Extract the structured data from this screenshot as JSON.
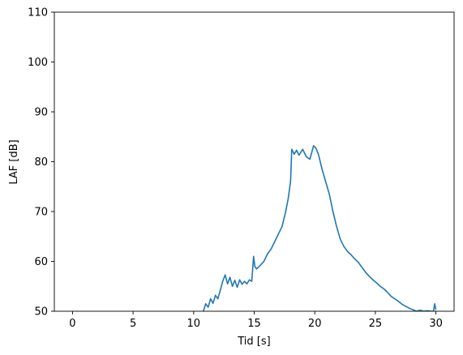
{
  "chart_data": {
    "type": "line",
    "title": "",
    "xlabel": "Tid [s]",
    "ylabel": "LAF [dB]",
    "xlim": [
      -1.5,
      31.5
    ],
    "ylim": [
      50,
      110
    ],
    "xticks": [
      0,
      5,
      10,
      15,
      20,
      25,
      30
    ],
    "yticks": [
      50,
      60,
      70,
      80,
      90,
      100,
      110
    ],
    "grid": false,
    "line_color": "#1f77b4",
    "series": [
      {
        "x": [
          10.8,
          11.0,
          11.2,
          11.4,
          11.6,
          11.8,
          12.0,
          12.2,
          12.4,
          12.6,
          12.8,
          13.0,
          13.2,
          13.4,
          13.6,
          13.8,
          14.0,
          14.2,
          14.4,
          14.6,
          14.8,
          14.95,
          15.05,
          15.2,
          15.5,
          15.8,
          16.1,
          16.4,
          16.7,
          17.0,
          17.3,
          17.6,
          17.8,
          18.0,
          18.1,
          18.3,
          18.5,
          18.7,
          19.0,
          19.3,
          19.6,
          19.9,
          20.1,
          20.3,
          20.6,
          20.9,
          21.2,
          21.5,
          21.8,
          22.1,
          22.4,
          22.7,
          23.0,
          23.3,
          23.6,
          23.9,
          24.2,
          24.5,
          24.8,
          25.1,
          25.4,
          25.7,
          26.0,
          26.3,
          26.6,
          26.9,
          27.2,
          27.5,
          27.8,
          28.1,
          28.4,
          28.7,
          29.0,
          29.3,
          29.6,
          29.8,
          29.9,
          30.0
        ],
        "y": [
          50.0,
          51.5,
          50.8,
          52.5,
          51.6,
          53.2,
          52.5,
          54.2,
          56.0,
          57.3,
          55.5,
          56.8,
          55.0,
          56.2,
          54.8,
          56.3,
          55.4,
          56.0,
          55.5,
          56.3,
          56.0,
          61.0,
          59.0,
          58.5,
          59.2,
          60.0,
          61.5,
          62.5,
          64.0,
          65.5,
          67.0,
          70.0,
          72.5,
          76.0,
          82.5,
          81.5,
          82.3,
          81.3,
          82.5,
          81.0,
          80.5,
          83.2,
          82.7,
          81.5,
          78.5,
          76.0,
          73.5,
          70.0,
          67.0,
          64.5,
          63.0,
          62.0,
          61.3,
          60.5,
          59.8,
          58.8,
          57.8,
          57.0,
          56.3,
          55.7,
          55.0,
          54.5,
          53.8,
          53.0,
          52.5,
          52.0,
          51.4,
          51.0,
          50.6,
          50.3,
          50.0,
          50.2,
          50.0,
          50.1,
          50.0,
          50.0,
          51.5,
          50.3
        ]
      }
    ]
  }
}
